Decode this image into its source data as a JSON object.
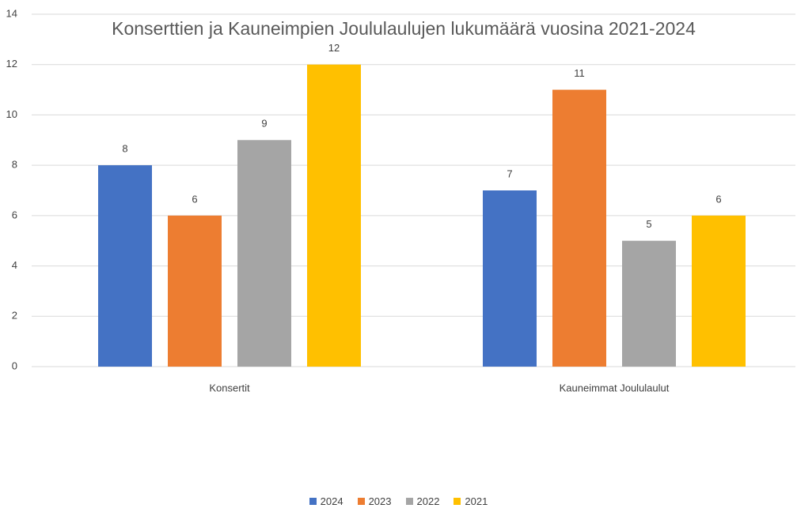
{
  "chart_data": {
    "type": "bar",
    "title": "Konserttien ja Kauneimpien Joululaulujen  lukumäärä vuosina 2021-2024",
    "categories": [
      "Konsertit",
      "Kauneimmat Joululaulut"
    ],
    "series": [
      {
        "name": "2024",
        "color": "#4472c4",
        "values": [
          8,
          7
        ]
      },
      {
        "name": "2023",
        "color": "#ed7d31",
        "values": [
          6,
          11
        ]
      },
      {
        "name": "2022",
        "color": "#a5a5a5",
        "values": [
          9,
          5
        ]
      },
      {
        "name": "2021",
        "color": "#ffc000",
        "values": [
          12,
          6
        ]
      }
    ],
    "ylim": [
      0,
      14
    ],
    "yticks": [
      0,
      2,
      4,
      6,
      8,
      10,
      12,
      14
    ],
    "grid": true,
    "legend": "bottom"
  }
}
